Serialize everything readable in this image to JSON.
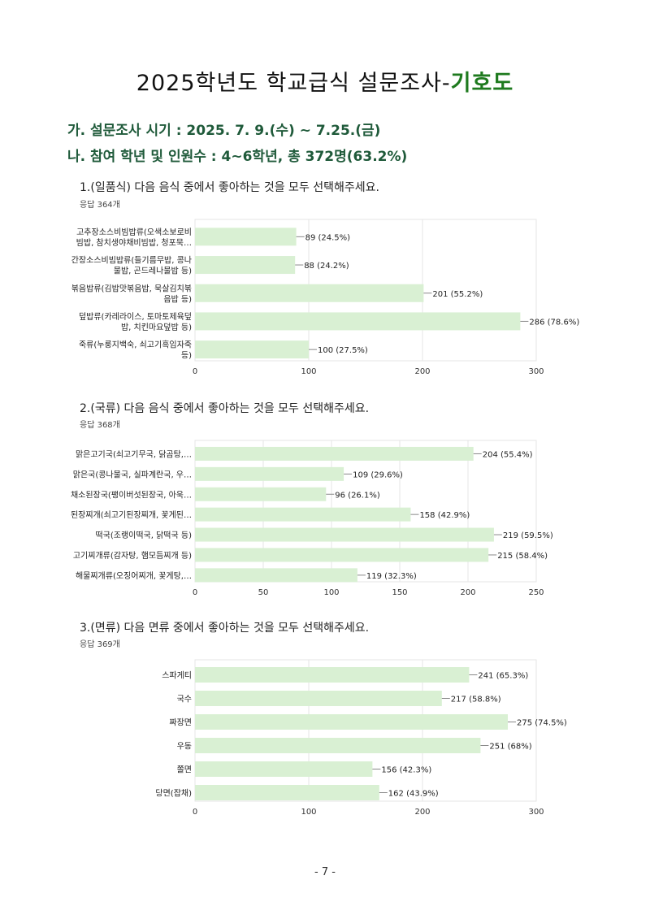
{
  "title": {
    "main": "2025학년도 학교급식 설문조사-",
    "highlight": "기호도"
  },
  "info": {
    "line1": "가. 설문조사 시기 : 2025. 7. 9.(수) ~ 7.25.(금)",
    "line2": "나. 참여 학년 및 인원수 : 4~6학년, 총 372명(63.2%)"
  },
  "colors": {
    "bar": "#d9f0d3",
    "grid": "#e6e6e6",
    "title_accent": "#1e7a1e",
    "info": "#1f5a3a"
  },
  "chart_data": [
    {
      "type": "bar",
      "orientation": "horizontal",
      "title": "1.(일품식) 다음 음식 중에서 좋아하는 것을 모두 선택해주세요.",
      "subtitle": "응답 364개",
      "categories": [
        [
          "고추장소스비빔밥류(오색소보로비",
          "빔밥, 참치생야채비빔밥, 청포묵…"
        ],
        [
          "간장소스비빔밥류(들기름무밥, 콩나",
          "물밥, 곤드레나물밥 등)"
        ],
        [
          "볶음밥류(김밥맛볶음밥, 묵살김치볶",
          "음밥 등)"
        ],
        [
          "덮밥류(카레라이스, 토마토제육덮",
          "밥, 치킨마요덮밥 등)"
        ],
        [
          "죽류(누룽지백숙, 쇠고기흑임자죽",
          "등)"
        ]
      ],
      "values": [
        89,
        88,
        201,
        286,
        100
      ],
      "value_labels": [
        "89 (24.5%)",
        "88 (24.2%)",
        "201 (55.2%)",
        "286 (78.6%)",
        "100 (27.5%)"
      ],
      "xlim": [
        0,
        300
      ],
      "xticks": [
        0,
        100,
        200,
        300
      ]
    },
    {
      "type": "bar",
      "orientation": "horizontal",
      "title": "2.(국류) 다음 음식 중에서 좋아하는 것을 모두 선택해주세요.",
      "subtitle": "응답 368개",
      "categories": [
        [
          "맑은고기국(쇠고기무국, 닭곰탕,…"
        ],
        [
          "맑은국(콩나물국, 실파계란국, 우…"
        ],
        [
          "채소된장국(팽이버섯된장국, 아욱…"
        ],
        [
          "된장찌개(쇠고기된장찌개, 꽃게된…"
        ],
        [
          "떡국(조랭이떡국, 닭떡국 등)"
        ],
        [
          "고기찌개류(감자탕, 햄모듬찌개 등)"
        ],
        [
          "해물찌개류(오징어찌개, 꽃게탕,…"
        ]
      ],
      "values": [
        204,
        109,
        96,
        158,
        219,
        215,
        119
      ],
      "value_labels": [
        "204 (55.4%)",
        "109 (29.6%)",
        "96 (26.1%)",
        "158 (42.9%)",
        "219 (59.5%)",
        "215 (58.4%)",
        "119 (32.3%)"
      ],
      "xlim": [
        0,
        250
      ],
      "xticks": [
        0,
        50,
        100,
        150,
        200,
        250
      ]
    },
    {
      "type": "bar",
      "orientation": "horizontal",
      "title": "3.(면류) 다음 면류 중에서 좋아하는 것을 모두 선택해주세요.",
      "subtitle": "응답 369개",
      "categories": [
        [
          "스파게티"
        ],
        [
          "국수"
        ],
        [
          "짜장면"
        ],
        [
          "우동"
        ],
        [
          "쫄면"
        ],
        [
          "당면(잡채)"
        ]
      ],
      "values": [
        241,
        217,
        275,
        251,
        156,
        162
      ],
      "value_labels": [
        "241 (65.3%)",
        "217 (58.8%)",
        "275 (74.5%)",
        "251 (68%)",
        "156 (42.3%)",
        "162 (43.9%)"
      ],
      "xlim": [
        0,
        300
      ],
      "xticks": [
        0,
        100,
        200,
        300
      ]
    }
  ],
  "page_number": "- 7 -"
}
